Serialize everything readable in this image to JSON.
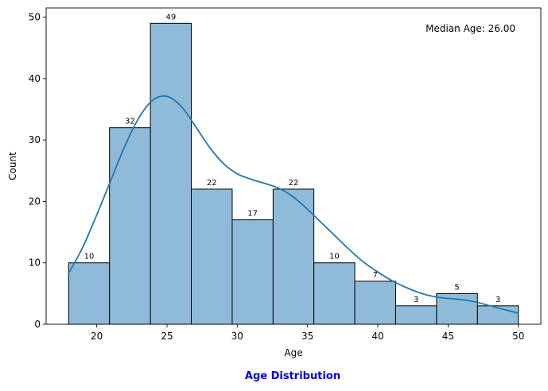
{
  "caption": "Age Distribution",
  "colors": {
    "bar_fill": "#8fbbd9",
    "bar_edge": "#000000",
    "kde_line": "#1f77b4",
    "caption": "#0000dd"
  },
  "chart_data": {
    "type": "bar",
    "title": "",
    "xlabel": "Age",
    "ylabel": "Count",
    "annotation": "Median Age: 26.00",
    "bins": [
      {
        "start": 18.0,
        "end": 20.91,
        "value": 10
      },
      {
        "start": 20.91,
        "end": 23.82,
        "value": 32
      },
      {
        "start": 23.82,
        "end": 26.73,
        "value": 49
      },
      {
        "start": 26.73,
        "end": 29.64,
        "value": 22
      },
      {
        "start": 29.64,
        "end": 32.55,
        "value": 17
      },
      {
        "start": 32.55,
        "end": 35.45,
        "value": 22
      },
      {
        "start": 35.45,
        "end": 38.36,
        "value": 10
      },
      {
        "start": 38.36,
        "end": 41.27,
        "value": 7
      },
      {
        "start": 41.27,
        "end": 44.18,
        "value": 3
      },
      {
        "start": 44.18,
        "end": 47.09,
        "value": 5
      },
      {
        "start": 47.09,
        "end": 50.0,
        "value": 3
      }
    ],
    "kde": {
      "x": [
        18,
        19,
        20,
        21,
        22,
        23,
        24,
        25,
        26,
        27,
        28,
        29,
        30,
        31,
        32,
        33,
        34,
        35,
        36,
        37,
        38,
        39,
        40,
        41,
        42,
        43,
        44,
        45,
        46,
        47,
        48,
        49,
        50
      ],
      "y": [
        8.3,
        12.5,
        17.8,
        23.4,
        29.0,
        33.6,
        36.5,
        37.1,
        35.5,
        32.3,
        28.9,
        26.2,
        24.5,
        23.6,
        22.9,
        22.1,
        20.7,
        18.7,
        16.5,
        14.3,
        12.1,
        10.1,
        8.5,
        7.1,
        6.0,
        5.1,
        4.5,
        4.2,
        4.0,
        3.6,
        3.0,
        2.4,
        1.8
      ]
    },
    "xlim": [
      16.4,
      51.6
    ],
    "ylim": [
      0,
      51.5
    ],
    "xticks": [
      20,
      25,
      30,
      35,
      40,
      45,
      50
    ],
    "yticks": [
      0,
      10,
      20,
      30,
      40,
      50
    ],
    "grid": false,
    "legend": "none"
  }
}
